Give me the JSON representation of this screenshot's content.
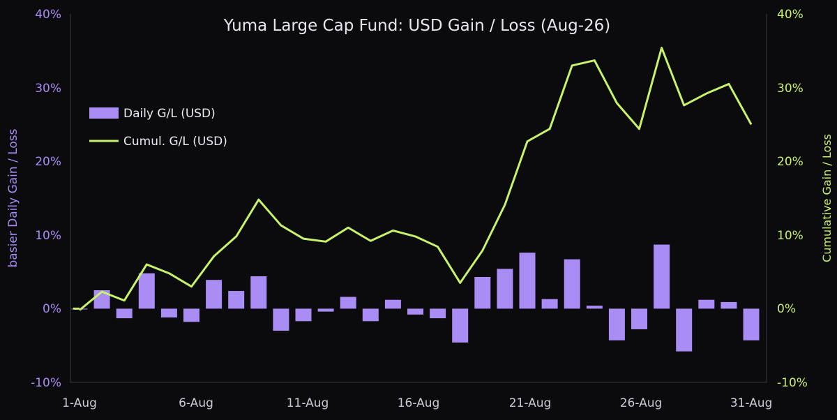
{
  "chart_data": {
    "type": "bar",
    "title": "Yuma Large Cap Fund: USD Gain / Loss (Aug-26)",
    "ylabel": "basier Daily Gain / Loss",
    "y2label": "Cumulative Gain / Loss",
    "ylim": [
      -10,
      40
    ],
    "y2lim": [
      -10,
      40
    ],
    "yticks": [
      "40%",
      "30%",
      "20%",
      "10%",
      "0%",
      "-10%"
    ],
    "y2ticks": [
      "40%",
      "30%",
      "20%",
      "10%",
      "0%",
      "-10%"
    ],
    "xticks": [
      "1-Aug",
      "6-Aug",
      "11-Aug",
      "16-Aug",
      "21-Aug",
      "26-Aug",
      "31-Aug"
    ],
    "legend_position": "upper-left",
    "grid": false,
    "colors": {
      "bar": "#a98cf4",
      "line": "#c9f26b",
      "background": "#0b0a0d"
    },
    "days": [
      1,
      2,
      3,
      4,
      5,
      6,
      7,
      8,
      9,
      10,
      11,
      12,
      13,
      14,
      15,
      16,
      17,
      18,
      19,
      20,
      21,
      22,
      23,
      24,
      25,
      26,
      27,
      28,
      29,
      30,
      31
    ],
    "series": [
      {
        "name": "Daily G/L (USD)",
        "type": "bar",
        "values": [
          -0.1,
          2.5,
          -1.3,
          4.8,
          -1.2,
          -1.8,
          3.9,
          2.4,
          4.4,
          -3.0,
          -1.7,
          -0.4,
          1.6,
          -1.7,
          1.2,
          -0.8,
          -1.3,
          -4.6,
          4.3,
          5.4,
          7.6,
          1.3,
          6.7,
          0.4,
          -4.3,
          -2.8,
          8.7,
          -5.8,
          1.2,
          0.9,
          -4.3
        ]
      },
      {
        "name": "Cumul. G/L (USD)",
        "type": "line",
        "values": [
          -0.2,
          2.3,
          1.1,
          6.0,
          4.8,
          3.0,
          7.1,
          9.8,
          14.8,
          11.3,
          9.5,
          9.1,
          11.0,
          9.2,
          10.6,
          9.8,
          8.4,
          3.5,
          7.9,
          14.1,
          22.7,
          24.4,
          33.0,
          33.7,
          27.9,
          24.4,
          35.4,
          27.6,
          29.2,
          30.5,
          25.0
        ]
      }
    ]
  }
}
